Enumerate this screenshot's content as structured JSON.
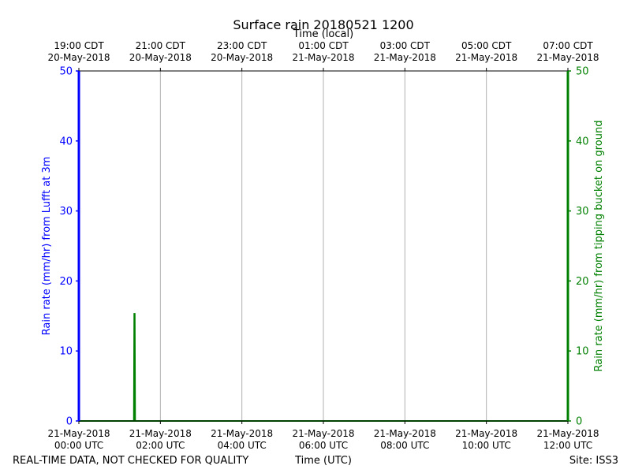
{
  "chart_data": {
    "type": "line",
    "title": "Surface rain 20180521 1200",
    "xlabel_bottom": "Time (UTC)",
    "xlabel_top": "Time (local)",
    "ylabel_left": "Rain rate (mm/hr) from Lufft at 3m",
    "ylabel_right": "Rain rate (mm/hr) from tipping bucket on ground",
    "ylim": [
      0,
      50
    ],
    "xlim_hours_utc": [
      0,
      12
    ],
    "yticks": [
      0,
      10,
      20,
      30,
      40,
      50
    ],
    "yticks_right": [
      0,
      10,
      20,
      30,
      40,
      50
    ],
    "xticks_bottom": [
      {
        "hour": 0,
        "line1": "21-May-2018",
        "line2": "00:00 UTC"
      },
      {
        "hour": 2,
        "line1": "21-May-2018",
        "line2": "02:00 UTC"
      },
      {
        "hour": 4,
        "line1": "21-May-2018",
        "line2": "04:00 UTC"
      },
      {
        "hour": 6,
        "line1": "21-May-2018",
        "line2": "06:00 UTC"
      },
      {
        "hour": 8,
        "line1": "21-May-2018",
        "line2": "08:00 UTC"
      },
      {
        "hour": 10,
        "line1": "21-May-2018",
        "line2": "10:00 UTC"
      },
      {
        "hour": 12,
        "line1": "21-May-2018",
        "line2": "12:00 UTC"
      }
    ],
    "xticks_top": [
      {
        "hour": 0,
        "line1": "19:00 CDT",
        "line2": "20-May-2018"
      },
      {
        "hour": 2,
        "line1": "21:00 CDT",
        "line2": "20-May-2018"
      },
      {
        "hour": 4,
        "line1": "23:00 CDT",
        "line2": "20-May-2018"
      },
      {
        "hour": 6,
        "line1": "01:00 CDT",
        "line2": "21-May-2018"
      },
      {
        "hour": 8,
        "line1": "03:00 CDT",
        "line2": "21-May-2018"
      },
      {
        "hour": 10,
        "line1": "05:00 CDT",
        "line2": "21-May-2018"
      },
      {
        "hour": 12,
        "line1": "07:00 CDT",
        "line2": "21-May-2018"
      }
    ],
    "grid": true,
    "series": [
      {
        "color": "#0000ff",
        "axis": "left",
        "x_hours_utc": [
          0,
          12
        ],
        "y": [
          0,
          0
        ]
      },
      {
        "color": "#008000",
        "axis": "right",
        "x_hours_utc": [
          0,
          1.35,
          1.36,
          1.37,
          1.38,
          12
        ],
        "y": [
          0,
          0,
          15.3,
          15.3,
          0,
          0
        ]
      }
    ],
    "left_axis_color": "#0000ff",
    "right_axis_color": "#008000"
  },
  "footer": {
    "left_note": "REAL-TIME DATA, NOT CHECKED FOR QUALITY",
    "site": "Site: ISS3"
  }
}
